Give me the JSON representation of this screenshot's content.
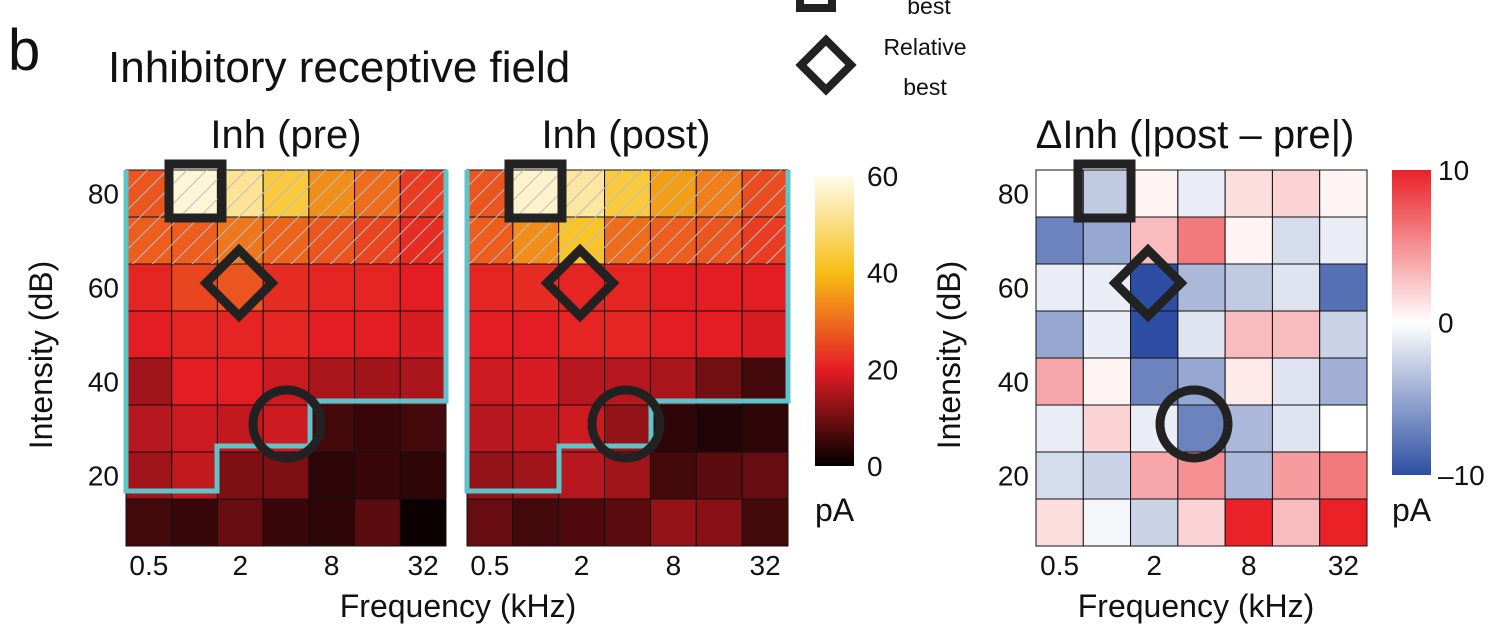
{
  "figure": {
    "panel_label": "b",
    "title": "Inhibitory receptive field",
    "legend": {
      "square_label": "best",
      "diamond_label_line1": "Relative",
      "diamond_label_line2": "best"
    }
  },
  "chart_data": [
    {
      "type": "heatmap",
      "title": "Inh (pre)",
      "xlabel": "Frequency (kHz)",
      "ylabel": "Intensity (dB)",
      "x_tick_labels": [
        "0.5",
        "2",
        "8",
        "32"
      ],
      "y_tick_labels": [
        "80",
        "60",
        "40",
        "20"
      ],
      "n_cols": 7,
      "rows_top_to_bottom": [
        [
          27,
          58,
          52,
          44,
          34,
          30,
          24
        ],
        [
          28,
          28,
          31,
          29,
          27,
          25,
          22
        ],
        [
          21,
          25,
          27,
          22,
          21,
          21,
          20
        ],
        [
          20,
          21,
          21,
          21,
          20,
          20,
          19
        ],
        [
          14,
          20,
          20,
          18,
          15,
          14,
          15
        ],
        [
          16,
          18,
          17,
          18,
          6,
          5,
          6
        ],
        [
          14,
          17,
          11,
          11,
          4,
          5,
          4
        ],
        [
          6,
          5,
          9,
          5,
          4,
          8,
          1
        ]
      ],
      "hatched_rows": [
        0,
        1
      ],
      "best_marker": {
        "shape": "square",
        "row": 0,
        "col": 1
      },
      "relative_best_marker": {
        "shape": "diamond",
        "row": 2,
        "col": 2
      },
      "extra_marker": {
        "shape": "circle",
        "row": 5.5,
        "col": 3.5
      },
      "colorbar": {
        "min": 0,
        "max": 60,
        "ticks": [
          "60",
          "40",
          "20",
          "0"
        ],
        "unit": "pA",
        "colormap": "hot"
      },
      "boundary_color": "#5ec4c9"
    },
    {
      "type": "heatmap",
      "title": "Inh (post)",
      "xlabel": "Frequency (kHz)",
      "ylabel": "",
      "x_tick_labels": [
        "0.5",
        "2",
        "8",
        "32"
      ],
      "y_tick_labels": [],
      "n_cols": 7,
      "rows_top_to_bottom": [
        [
          27,
          57,
          53,
          44,
          36,
          32,
          26
        ],
        [
          28,
          34,
          42,
          30,
          28,
          27,
          24
        ],
        [
          21,
          22,
          21,
          21,
          20,
          20,
          20
        ],
        [
          20,
          20,
          21,
          21,
          20,
          20,
          19
        ],
        [
          18,
          19,
          16,
          16,
          15,
          10,
          6
        ],
        [
          16,
          17,
          18,
          13,
          4,
          3,
          4
        ],
        [
          13,
          14,
          16,
          14,
          6,
          8,
          9
        ],
        [
          9,
          6,
          7,
          8,
          13,
          12,
          6
        ]
      ],
      "hatched_rows": [
        0,
        1
      ],
      "best_marker": {
        "shape": "square",
        "row": 0,
        "col": 1
      },
      "relative_best_marker": {
        "shape": "diamond",
        "row": 2,
        "col": 2
      },
      "extra_marker": {
        "shape": "circle",
        "row": 5.5,
        "col": 3.5
      },
      "colorbar": {
        "min": 0,
        "max": 60,
        "ticks": [
          "60",
          "40",
          "20",
          "0"
        ],
        "unit": "pA",
        "colormap": "hot"
      },
      "boundary_color": "#5ec4c9"
    },
    {
      "type": "heatmap",
      "title": "ΔInh (|post – pre|)",
      "xlabel": "Frequency (kHz)",
      "ylabel": "Intensity (dB)",
      "x_tick_labels": [
        "0.5",
        "2",
        "8",
        "32"
      ],
      "y_tick_labels": [
        "80",
        "60",
        "40",
        "20"
      ],
      "n_cols": 7,
      "rows_top_to_bottom": [
        [
          0,
          -3,
          0.5,
          -1,
          1.5,
          2,
          0.5
        ],
        [
          -7,
          -5,
          3,
          6,
          0.5,
          -2,
          -1
        ],
        [
          -1,
          -1,
          -10,
          -4,
          -3,
          -1.5,
          -8
        ],
        [
          -5,
          -1,
          -10,
          -1.5,
          3,
          3,
          -2.5
        ],
        [
          4,
          0.5,
          -7,
          -5,
          1,
          -1.5,
          -4.5
        ],
        [
          -1,
          2,
          -1,
          -7,
          -4,
          -1.5,
          0
        ],
        [
          -2,
          -2.5,
          4,
          5,
          -4,
          4.5,
          6
        ],
        [
          1.5,
          -0.5,
          -2.5,
          2,
          10,
          3,
          10
        ]
      ],
      "best_marker": {
        "shape": "square",
        "row": 0,
        "col": 1
      },
      "relative_best_marker": {
        "shape": "diamond",
        "row": 2,
        "col": 2
      },
      "extra_marker": {
        "shape": "circle",
        "row": 5.5,
        "col": 3.5
      },
      "colorbar": {
        "min": -10,
        "max": 10,
        "ticks": [
          "10",
          "0",
          "–10"
        ],
        "unit": "pA",
        "colormap": "blue-white-red"
      }
    }
  ]
}
